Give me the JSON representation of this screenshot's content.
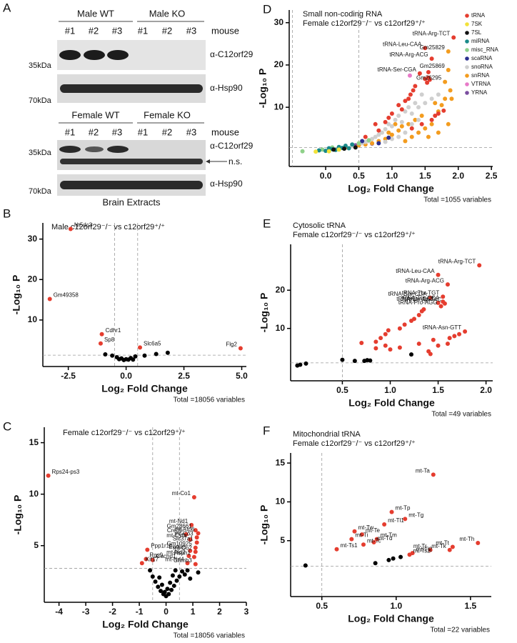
{
  "blots": [
    {
      "label": "A",
      "groups": [
        "Male WT",
        "Male KO"
      ],
      "lanes": [
        "#1",
        "#2",
        "#3",
        "#1",
        "#2",
        "#3"
      ],
      "lane_title": "mouse",
      "rows": [
        {
          "antibody": "α-C12orf29",
          "marker": "35kDa"
        },
        {
          "antibody": "α-Hsp90",
          "marker": "70kDa"
        }
      ]
    },
    {
      "groups": [
        "Female WT",
        "Female KO"
      ],
      "lanes": [
        "#1",
        "#2",
        "#3",
        "#1",
        "#2",
        "#3"
      ],
      "lane_title": "mouse",
      "rows": [
        {
          "antibody": "α-C12orf29",
          "marker": "35kDa",
          "note": "n.s."
        },
        {
          "antibody": "α-Hsp90",
          "marker": "70kDa"
        }
      ],
      "caption": "Brain Extracts"
    }
  ],
  "chart_data": [
    {
      "type": "scatter",
      "panel": "B",
      "title": "Male c12orf29⁻/⁻ vs c12orf29⁺/⁺",
      "xlabel": "Log₂ Fold Change",
      "ylabel": "-Log₁₀ P",
      "note": "Total =18056 variables",
      "xlim": [
        -3.6,
        5.2
      ],
      "ylim": [
        -1.5,
        34
      ],
      "xticks": [
        -2.5,
        {
          "value": 0,
          "label": "0.0"
        },
        2.5,
        {
          "value": 5,
          "label": "5.0"
        }
      ],
      "yticks": [
        10,
        20,
        30
      ],
      "vlines": [
        -0.5,
        0.5
      ],
      "hline": 1.3,
      "series": [
        {
          "color": "#000000",
          "x": [
            -0.9,
            -0.6,
            -0.4,
            -0.2,
            0,
            0.2,
            0.4,
            0.3,
            -0.1,
            1.3,
            1.8,
            0.8,
            -0.3,
            0.1
          ],
          "values": [
            1.5,
            1.2,
            0.8,
            0.5,
            0.3,
            0.6,
            1.0,
            0.2,
            0.1,
            1.6,
            1.9,
            1.2,
            0.3,
            0.2
          ]
        },
        {
          "color": "#e53d2f",
          "x": [
            -2.4,
            -3.3,
            -1.05,
            -1.1,
            0.6,
            4.95
          ],
          "values": [
            32.5,
            15.2,
            6.5,
            4.2,
            3.2,
            3.0
          ],
          "labels": [
            "Nt5dc3",
            "Gm49358",
            "Cdhr1",
            "Sp8",
            "Slc6a5",
            "Flg2"
          ]
        }
      ]
    },
    {
      "type": "scatter",
      "panel": "C",
      "title": "Female c12orf29⁻/⁻ vs c12orf29⁺/⁺",
      "xlabel": "Log₂ Fold Change",
      "ylabel": "-Log₁₀ P",
      "note": "Total =18056 variables",
      "xlim": [
        -4.55,
        3
      ],
      "ylim": [
        -0.5,
        16.5
      ],
      "xticks": [
        -4,
        -3,
        -2,
        -1,
        0,
        1,
        2,
        3
      ],
      "yticks": [
        5,
        10,
        15
      ],
      "vlines": [
        -0.5,
        0.5
      ],
      "hline": 2.8,
      "series": [
        {
          "color": "#000000",
          "x": [
            -0.4,
            -0.3,
            -0.2,
            -0.1,
            0,
            0.1,
            0.2,
            0.3,
            0.4,
            0.5,
            0.6,
            -0.5,
            -0.6,
            0.7,
            0.8,
            -0.15,
            0.15,
            0.05,
            -0.05,
            0.25,
            -0.25,
            0.35,
            1.2,
            0.9
          ],
          "values": [
            1.5,
            1.0,
            0.6,
            0.3,
            0.1,
            0.3,
            0.7,
            1.1,
            1.6,
            2.0,
            2.5,
            2.0,
            2.6,
            2.2,
            2.6,
            1.2,
            1.4,
            0.8,
            0.5,
            2.1,
            1.9,
            2.6,
            2.4,
            1.8
          ]
        },
        {
          "color": "#e53d2f",
          "x": [
            -4.4,
            -0.7,
            -0.75,
            -0.5,
            -0.9,
            1.05,
            1.1,
            0.95,
            1.2,
            0.75,
            1.15,
            1.15,
            0.9,
            1.1,
            0.9,
            1.1,
            0.85,
            1.05,
            0.8,
            1.1
          ],
          "values": [
            11.8,
            4.6,
            3.7,
            3.6,
            3.3,
            9.7,
            6.5,
            7.0,
            6.2,
            6.1,
            5.8,
            5.3,
            5.6,
            4.8,
            4.5,
            4.4,
            4.0,
            3.9,
            3.3,
            3.2
          ],
          "labels": [
            "Rps24-ps3",
            "Ppp1r1b",
            "Rgs9",
            "Cachd1",
            "Kif17",
            "mt-Co1",
            "Gm28661",
            "mt-Nd1",
            "mt-Atp6",
            "Creb5",
            "mt-Co3",
            "Slc37a1",
            "mt-Cytb",
            "Gm10925",
            "Eomes",
            "mt-Co2",
            "mt-Nd2",
            "Rsph1",
            "mt-Nd4",
            "Chmb3"
          ]
        }
      ]
    },
    {
      "type": "scatter",
      "panel": "D",
      "title": "Small non-coding RNA",
      "subtitle": "Female c12orf29⁻/⁻ vs c12orf29⁺/⁺",
      "xlabel": "Log₂ Fold Change",
      "ylabel": "-Log₁₀ P",
      "note": "Total =1055 variables",
      "xlim": [
        -0.55,
        2.52
      ],
      "ylim": [
        -4,
        33
      ],
      "xticks": [
        {
          "value": 0,
          "label": "0.0"
        },
        0.5,
        {
          "value": 1,
          "label": "1.0"
        },
        1.5,
        {
          "value": 2,
          "label": "2.0"
        },
        2.5
      ],
      "yticks": [
        10,
        20,
        30
      ],
      "vlines": [
        -0.5,
        0.5
      ],
      "hline": 0.5,
      "legend": "upper right",
      "series": [
        {
          "name": "tRNA",
          "color": "#e53d2f",
          "x": [
            1.93,
            1.5,
            1.6,
            1.42,
            1.55,
            1.55,
            1.5,
            1.57,
            1.53,
            1.78,
            1.35,
            1.32,
            1.28,
            1.25,
            1.2,
            1.1,
            1.15,
            1.0,
            0.95,
            0.9,
            0.75,
            1.65,
            1.6,
            1.7,
            0.8,
            0.6,
            1.45,
            1.3
          ],
          "values": [
            26.5,
            24,
            21.5,
            18,
            18.3,
            17,
            16.7,
            16.5,
            15.8,
            9.2,
            15,
            14,
            13,
            12,
            11.5,
            10.5,
            9.5,
            8.5,
            7.5,
            6.5,
            6,
            8,
            7,
            8.5,
            4.5,
            3,
            6,
            5
          ],
          "labels": [
            "tRNA-Arg-TCT",
            "tRNA-Leu-CAA",
            "tRNA-Arg-ACG",
            "tRNA-Ser-CGA",
            null,
            null,
            null,
            null,
            null,
            null,
            null,
            null,
            null,
            null,
            null,
            null,
            null,
            null,
            null,
            null,
            null,
            null,
            null,
            null,
            null,
            null,
            null,
            null
          ]
        },
        {
          "name": "7SK",
          "color": "#f2e23a",
          "x": [
            -0.15,
            0.05,
            0.2
          ],
          "values": [
            -0.5,
            -0.4,
            0.0
          ]
        },
        {
          "name": "7SL",
          "color": "#111111",
          "x": [
            0.12,
            0.28,
            0.45
          ],
          "values": [
            0.0,
            0.2,
            0.5
          ]
        },
        {
          "name": "miRNA",
          "color": "#1a8a8a",
          "x": [
            0.0,
            0.1,
            0.2,
            0.3,
            0.4,
            -0.1,
            0.05,
            0.25,
            0.15,
            0.35
          ],
          "values": [
            -0.3,
            0.1,
            0.6,
            0.9,
            1.2,
            -0.2,
            0.3,
            0.4,
            -0.1,
            0.3
          ]
        },
        {
          "name": "misc_RNA",
          "color": "#8fd18a",
          "x": [
            -0.35,
            -0.05,
            0.1,
            0.5,
            0.65
          ],
          "values": [
            -0.4,
            0.0,
            0.5,
            1.5,
            2.2
          ]
        },
        {
          "name": "scaRNA",
          "color": "#2b2f8f",
          "x": [
            0.55,
            0.8,
            0.95
          ],
          "values": [
            2,
            1.5,
            2.8
          ]
        },
        {
          "name": "snoRNA",
          "color": "#cfcfcf",
          "x": [
            0.2,
            0.4,
            0.6,
            0.7,
            0.8,
            0.9,
            1.0,
            1.05,
            1.1,
            1.2,
            1.3,
            1.4,
            1.5,
            1.45,
            1.35,
            1.25,
            1.15,
            0.95,
            0.85,
            0.75,
            0.65,
            0.55,
            1.6,
            1.7,
            1.4,
            1.3,
            1.2,
            1.1,
            1.0,
            0.9
          ],
          "values": [
            0.3,
            0.8,
            1.8,
            2.5,
            3.5,
            4.8,
            5.5,
            7,
            8,
            9,
            8.5,
            10,
            11,
            13,
            11,
            10,
            6.5,
            6,
            4,
            3,
            2,
            1.5,
            12,
            13,
            7,
            6,
            4,
            3,
            2.5,
            1.8
          ]
        },
        {
          "name": "snRNA",
          "color": "#f39c1f",
          "x": [
            1.85,
            1.85,
            1.8,
            1.88,
            1.8,
            1.75,
            1.7,
            1.65,
            1.6,
            1.5,
            1.4,
            1.3,
            1.2,
            1.1,
            1.0,
            0.9,
            0.8,
            0.7,
            0.6,
            0.5,
            0.3,
            1.45,
            1.35,
            1.25,
            1.15,
            1.05,
            0.95,
            1.55,
            1.7,
            1.85,
            1.9
          ],
          "values": [
            23.2,
            18.8,
            16,
            14,
            12,
            10.5,
            9,
            11,
            6,
            5,
            4,
            3,
            2,
            4.5,
            3.5,
            2.5,
            2,
            1.5,
            1.2,
            1,
            0.5,
            8,
            7,
            6,
            5.5,
            6,
            4,
            3,
            4,
            6,
            12
          ],
          "labels": [
            "Gm25829",
            "Gm25869",
            "Gm26295",
            null,
            null,
            null,
            null,
            null,
            null,
            null,
            null,
            null,
            null,
            null,
            null,
            null,
            null,
            null,
            null,
            null,
            null,
            null,
            null,
            null,
            null,
            null,
            null,
            null,
            null,
            null,
            null
          ]
        },
        {
          "name": "VTRNA",
          "color": "#e87ac8",
          "x": [
            1.27
          ],
          "values": [
            17.5
          ]
        },
        {
          "name": "YRNA",
          "color": "#7b4ea0",
          "x": [
            0.45,
            0.7
          ],
          "values": [
            1.0,
            1.4
          ]
        }
      ]
    },
    {
      "type": "scatter",
      "panel": "E",
      "title": "Cytosolic tRNA",
      "subtitle": "Female c12orf29⁻/⁻ vs c12orf29⁺/⁺",
      "xlabel": "Log₂ Fold Change",
      "ylabel": "-Log₁₀ P",
      "note": "Total =49 variables",
      "xlim": [
        -0.04,
        2.07
      ],
      "ylim": [
        -3.7,
        32
      ],
      "xticks": [
        0.5,
        {
          "value": 1,
          "label": "1.0"
        },
        1.5,
        {
          "value": 2,
          "label": "2.0"
        }
      ],
      "yticks": [
        10,
        20
      ],
      "vlines": [
        0.5
      ],
      "hline": 1,
      "series": [
        {
          "color": "#000000",
          "x": [
            0.03,
            0.06,
            0.12,
            0.5,
            0.63,
            0.73,
            0.76,
            0.79,
            1.22
          ],
          "values": [
            0.3,
            0.5,
            0.8,
            1.8,
            1.5,
            1.5,
            1.7,
            1.6,
            3.2
          ]
        },
        {
          "color": "#e53d2f",
          "x": [
            1.93,
            1.5,
            1.6,
            1.55,
            1.42,
            1.55,
            1.5,
            1.57,
            1.53,
            1.78,
            1.35,
            1.33,
            1.3,
            1.25,
            1.22,
            1.15,
            1.1,
            0.98,
            0.95,
            0.9,
            0.85,
            0.7,
            1.3,
            0.95,
            1.1,
            1.0,
            1.45,
            1.5,
            1.6,
            1.62,
            1.67,
            1.72,
            1.4,
            1.42,
            0.85
          ],
          "values": [
            26.5,
            24,
            21.5,
            18.3,
            18,
            17,
            16.7,
            16.5,
            15.8,
            9.2,
            15,
            14.5,
            13.5,
            12.5,
            12,
            11,
            10,
            9.5,
            8.5,
            7.5,
            6.5,
            6.2,
            6,
            5.5,
            5,
            4.5,
            7,
            5.5,
            6,
            7.5,
            8,
            8.5,
            4,
            3.3,
            4.8
          ],
          "labels": [
            "tRNA-Arg-TCT",
            "tRNA-Leu-CAA",
            "tRNA-Arg-ACG",
            "tRNA-Thr-TGT",
            "tRNA-Ser-CGA",
            "tRNA-Trp-CCA",
            "tRNA-Thr-CGT",
            "tRNA-Val-TAC",
            "tRNA-Pro-AGG",
            "tRNA-Asn-GTT",
            null,
            null,
            null,
            null,
            null,
            null,
            null,
            null,
            null,
            null,
            null,
            null,
            null,
            null,
            null,
            null,
            null,
            null,
            null,
            null,
            null,
            null,
            null,
            null,
            null
          ]
        }
      ]
    },
    {
      "type": "scatter",
      "panel": "F",
      "title": "Mitochondrial tRNA",
      "subtitle": "Female c12orf29⁻/⁻ vs c12orf29⁺/⁺",
      "xlabel": "Log₂ Fold Change",
      "ylabel": "-Log₁₀ P",
      "note": "Total =22 variables",
      "xlim": [
        0.29,
        1.64
      ],
      "ylim": [
        -2.2,
        16.3
      ],
      "xticks": [
        0.5,
        {
          "value": 1,
          "label": "1.0"
        },
        1.5
      ],
      "yticks": [
        5,
        10,
        15
      ],
      "vlines": [
        0.5
      ],
      "hline": 1.7,
      "series": [
        {
          "color": "#000000",
          "x": [
            0.39,
            0.86,
            0.95,
            0.98,
            1.03
          ],
          "values": [
            1.8,
            2.1,
            2.5,
            2.7,
            2.9
          ]
        },
        {
          "color": "#e53d2f",
          "x": [
            1.25,
            0.97,
            1.06,
            0.72,
            0.92,
            0.77,
            0.7,
            0.87,
            0.78,
            0.85,
            0.6,
            1.09,
            1.11,
            1.23,
            1.38,
            1.36,
            1.55
          ],
          "values": [
            13.5,
            8.7,
            7.8,
            6.2,
            7.1,
            5.8,
            5.2,
            5.2,
            4.5,
            4.8,
            3.9,
            3.2,
            3.4,
            3.8,
            4.2,
            3.8,
            4.7
          ],
          "labels": [
            "mt-Ta",
            "mt-Tp",
            "mt-Tg",
            "mt-Tw",
            "mt-Tl1",
            "mt-Te",
            "mt-Ti",
            "mt-Tm",
            "mt-Tc",
            "mt-Td",
            "mt-Ts1",
            "mt-Ts2",
            "mt-Tl2",
            "mt-Tr",
            "mt-Tt",
            "mt-Tk",
            "mt-Th"
          ]
        }
      ]
    }
  ]
}
